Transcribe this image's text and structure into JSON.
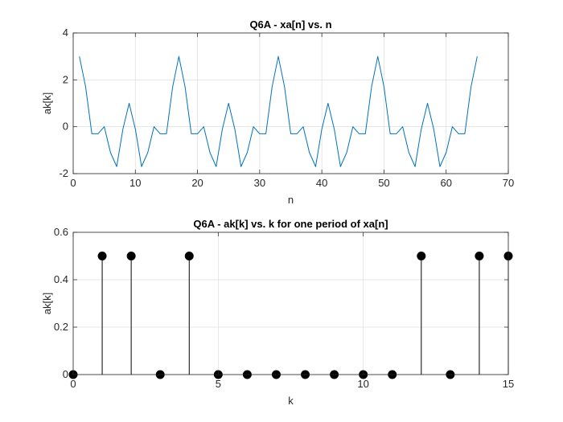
{
  "chart_data": [
    {
      "type": "line",
      "title": "Q6A - xa[n] vs. n",
      "xlabel": "n",
      "ylabel": "ak[k]",
      "xlim": [
        0,
        70
      ],
      "ylim": [
        -2,
        4
      ],
      "xticks": [
        0,
        10,
        20,
        30,
        40,
        50,
        60,
        70
      ],
      "yticks": [
        -2,
        0,
        2,
        4
      ],
      "grid": true,
      "color": "#0072BD",
      "series": [
        {
          "x": [
            1,
            2,
            3,
            4,
            5,
            6,
            7,
            8,
            9,
            10,
            11,
            12,
            13,
            14,
            15,
            16,
            17,
            18,
            19,
            20,
            21,
            22,
            23,
            24,
            25,
            26,
            27,
            28,
            29,
            30,
            31,
            32,
            33,
            34,
            35,
            36,
            37,
            38,
            39,
            40,
            41,
            42,
            43,
            44,
            45,
            46,
            47,
            48,
            49,
            50,
            51,
            52,
            53,
            54,
            55,
            56,
            57,
            58,
            59,
            60,
            61,
            62,
            63,
            64,
            65
          ],
          "values": [
            3,
            1.7,
            -0.3,
            -0.3,
            0,
            -1.1,
            -1.7,
            -0.1,
            1,
            -0.1,
            -1.7,
            -1.1,
            0,
            -0.3,
            -0.3,
            1.7,
            3,
            1.7,
            -0.3,
            -0.3,
            0,
            -1.1,
            -1.7,
            -0.1,
            1,
            -0.1,
            -1.7,
            -1.1,
            0,
            -0.3,
            -0.3,
            1.7,
            3,
            1.7,
            -0.3,
            -0.3,
            0,
            -1.1,
            -1.7,
            -0.1,
            1,
            -0.1,
            -1.7,
            -1.1,
            0,
            -0.3,
            -0.3,
            1.7,
            3,
            1.7,
            -0.3,
            -0.3,
            0,
            -1.1,
            -1.7,
            -0.1,
            1,
            -0.1,
            -1.7,
            -1.1,
            0,
            -0.3,
            -0.3,
            1.7,
            3
          ]
        }
      ]
    },
    {
      "type": "stem",
      "title": "Q6A - ak[k] vs. k for one period of xa[n]",
      "xlabel": "k",
      "ylabel": "ak[k]",
      "xlim": [
        0,
        15
      ],
      "ylim": [
        0,
        0.6
      ],
      "xticks": [
        0,
        5,
        10,
        15
      ],
      "yticks": [
        0,
        0.2,
        0.4,
        0.6
      ],
      "grid": true,
      "color": "#000000",
      "series": [
        {
          "x": [
            0,
            1,
            2,
            3,
            4,
            5,
            6,
            7,
            8,
            9,
            10,
            11,
            12,
            13,
            14,
            15
          ],
          "values": [
            0,
            0.5,
            0.5,
            0,
            0.5,
            0,
            0,
            0,
            0,
            0,
            0,
            0,
            0.5,
            0,
            0.5,
            0.5
          ]
        }
      ]
    }
  ]
}
